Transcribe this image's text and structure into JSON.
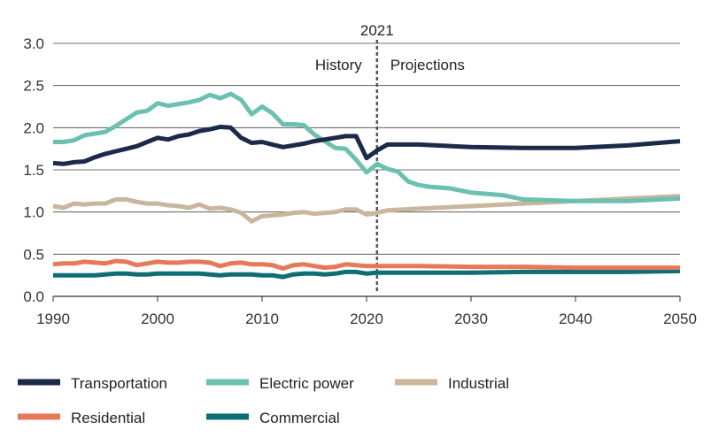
{
  "chart_data": {
    "type": "line",
    "title": "",
    "xlabel": "",
    "ylabel": "",
    "xlim": [
      1990,
      2050
    ],
    "ylim": [
      0,
      3.0
    ],
    "xticks": [
      1990,
      2000,
      2010,
      2020,
      2030,
      2040,
      2050
    ],
    "xtick_labels": [
      "1990",
      "2000",
      "2010",
      "2020",
      "2030",
      "2040",
      "2050"
    ],
    "yticks": [
      0,
      0.5,
      1.0,
      1.5,
      2.0,
      2.5,
      3.0
    ],
    "ytick_labels": [
      "0.0",
      "0.5",
      "1.0",
      "1.5",
      "2.0",
      "2.5",
      "3.0"
    ],
    "grid": "horizontal",
    "divider": {
      "x": 2021,
      "label": "2021",
      "left_label": "History",
      "right_label": "Projections"
    },
    "series": [
      {
        "name": "Transportation",
        "color": "#1c2a4a",
        "x": [
          1990,
          1991,
          1992,
          1993,
          1994,
          1995,
          1996,
          1997,
          1998,
          1999,
          2000,
          2001,
          2002,
          2003,
          2004,
          2005,
          2006,
          2007,
          2008,
          2009,
          2010,
          2011,
          2012,
          2013,
          2014,
          2015,
          2016,
          2017,
          2018,
          2019,
          2020,
          2021,
          2022,
          2025,
          2030,
          2035,
          2040,
          2045,
          2050
        ],
        "values": [
          1.58,
          1.57,
          1.59,
          1.6,
          1.65,
          1.69,
          1.72,
          1.75,
          1.78,
          1.83,
          1.88,
          1.86,
          1.9,
          1.92,
          1.96,
          1.98,
          2.01,
          2.0,
          1.88,
          1.82,
          1.83,
          1.8,
          1.77,
          1.79,
          1.81,
          1.84,
          1.86,
          1.88,
          1.9,
          1.9,
          1.64,
          1.73,
          1.8,
          1.8,
          1.77,
          1.76,
          1.76,
          1.79,
          1.84
        ]
      },
      {
        "name": "Electric power",
        "color": "#6cc0b0",
        "x": [
          1990,
          1991,
          1992,
          1993,
          1994,
          1995,
          1996,
          1997,
          1998,
          1999,
          2000,
          2001,
          2002,
          2003,
          2004,
          2005,
          2006,
          2007,
          2008,
          2009,
          2010,
          2011,
          2012,
          2013,
          2014,
          2015,
          2016,
          2017,
          2018,
          2019,
          2020,
          2021,
          2022,
          2023,
          2024,
          2025,
          2026,
          2027,
          2028,
          2030,
          2033,
          2035,
          2040,
          2045,
          2050
        ],
        "values": [
          1.83,
          1.83,
          1.85,
          1.91,
          1.93,
          1.95,
          2.02,
          2.1,
          2.18,
          2.2,
          2.29,
          2.26,
          2.28,
          2.3,
          2.33,
          2.39,
          2.35,
          2.4,
          2.33,
          2.16,
          2.25,
          2.17,
          2.04,
          2.04,
          2.03,
          1.92,
          1.84,
          1.76,
          1.75,
          1.62,
          1.47,
          1.57,
          1.51,
          1.48,
          1.36,
          1.32,
          1.3,
          1.29,
          1.28,
          1.23,
          1.2,
          1.15,
          1.13,
          1.13,
          1.16
        ]
      },
      {
        "name": "Industrial",
        "color": "#c9b79c",
        "x": [
          1990,
          1991,
          1992,
          1993,
          1994,
          1995,
          1996,
          1997,
          1998,
          1999,
          2000,
          2001,
          2002,
          2003,
          2004,
          2005,
          2006,
          2007,
          2008,
          2009,
          2010,
          2011,
          2012,
          2013,
          2014,
          2015,
          2016,
          2017,
          2018,
          2019,
          2020,
          2021,
          2022,
          2025,
          2030,
          2035,
          2040,
          2045,
          2050
        ],
        "values": [
          1.07,
          1.05,
          1.1,
          1.09,
          1.1,
          1.1,
          1.15,
          1.15,
          1.12,
          1.1,
          1.1,
          1.08,
          1.07,
          1.05,
          1.09,
          1.04,
          1.05,
          1.03,
          0.99,
          0.89,
          0.95,
          0.96,
          0.97,
          0.99,
          1.0,
          0.98,
          0.99,
          1.0,
          1.03,
          1.03,
          0.97,
          0.99,
          1.02,
          1.04,
          1.07,
          1.1,
          1.13,
          1.16,
          1.19
        ]
      },
      {
        "name": "Residential",
        "color": "#e8785a",
        "x": [
          1990,
          1991,
          1992,
          1993,
          1994,
          1995,
          1996,
          1997,
          1998,
          1999,
          2000,
          2001,
          2002,
          2003,
          2004,
          2005,
          2006,
          2007,
          2008,
          2009,
          2010,
          2011,
          2012,
          2013,
          2014,
          2015,
          2016,
          2017,
          2018,
          2019,
          2020,
          2021,
          2022,
          2025,
          2030,
          2035,
          2040,
          2045,
          2050
        ],
        "values": [
          0.38,
          0.39,
          0.39,
          0.41,
          0.4,
          0.39,
          0.42,
          0.41,
          0.37,
          0.39,
          0.41,
          0.4,
          0.4,
          0.41,
          0.41,
          0.4,
          0.36,
          0.39,
          0.4,
          0.38,
          0.38,
          0.37,
          0.33,
          0.37,
          0.38,
          0.36,
          0.34,
          0.35,
          0.38,
          0.37,
          0.36,
          0.36,
          0.36,
          0.36,
          0.35,
          0.35,
          0.34,
          0.34,
          0.34
        ]
      },
      {
        "name": "Commercial",
        "color": "#0f6e73",
        "x": [
          1990,
          1991,
          1992,
          1993,
          1994,
          1995,
          1996,
          1997,
          1998,
          1999,
          2000,
          2001,
          2002,
          2003,
          2004,
          2005,
          2006,
          2007,
          2008,
          2009,
          2010,
          2011,
          2012,
          2013,
          2014,
          2015,
          2016,
          2017,
          2018,
          2019,
          2020,
          2021,
          2022,
          2025,
          2030,
          2035,
          2040,
          2045,
          2050
        ],
        "values": [
          0.25,
          0.25,
          0.25,
          0.25,
          0.25,
          0.26,
          0.27,
          0.27,
          0.26,
          0.26,
          0.27,
          0.27,
          0.27,
          0.27,
          0.27,
          0.26,
          0.25,
          0.26,
          0.26,
          0.26,
          0.25,
          0.25,
          0.23,
          0.26,
          0.27,
          0.27,
          0.26,
          0.27,
          0.29,
          0.29,
          0.27,
          0.28,
          0.28,
          0.28,
          0.28,
          0.29,
          0.29,
          0.29,
          0.3
        ]
      }
    ],
    "legend": {
      "position": "bottom",
      "entries": [
        "Transportation",
        "Electric power",
        "Industrial",
        "Residential",
        "Commercial"
      ]
    }
  }
}
